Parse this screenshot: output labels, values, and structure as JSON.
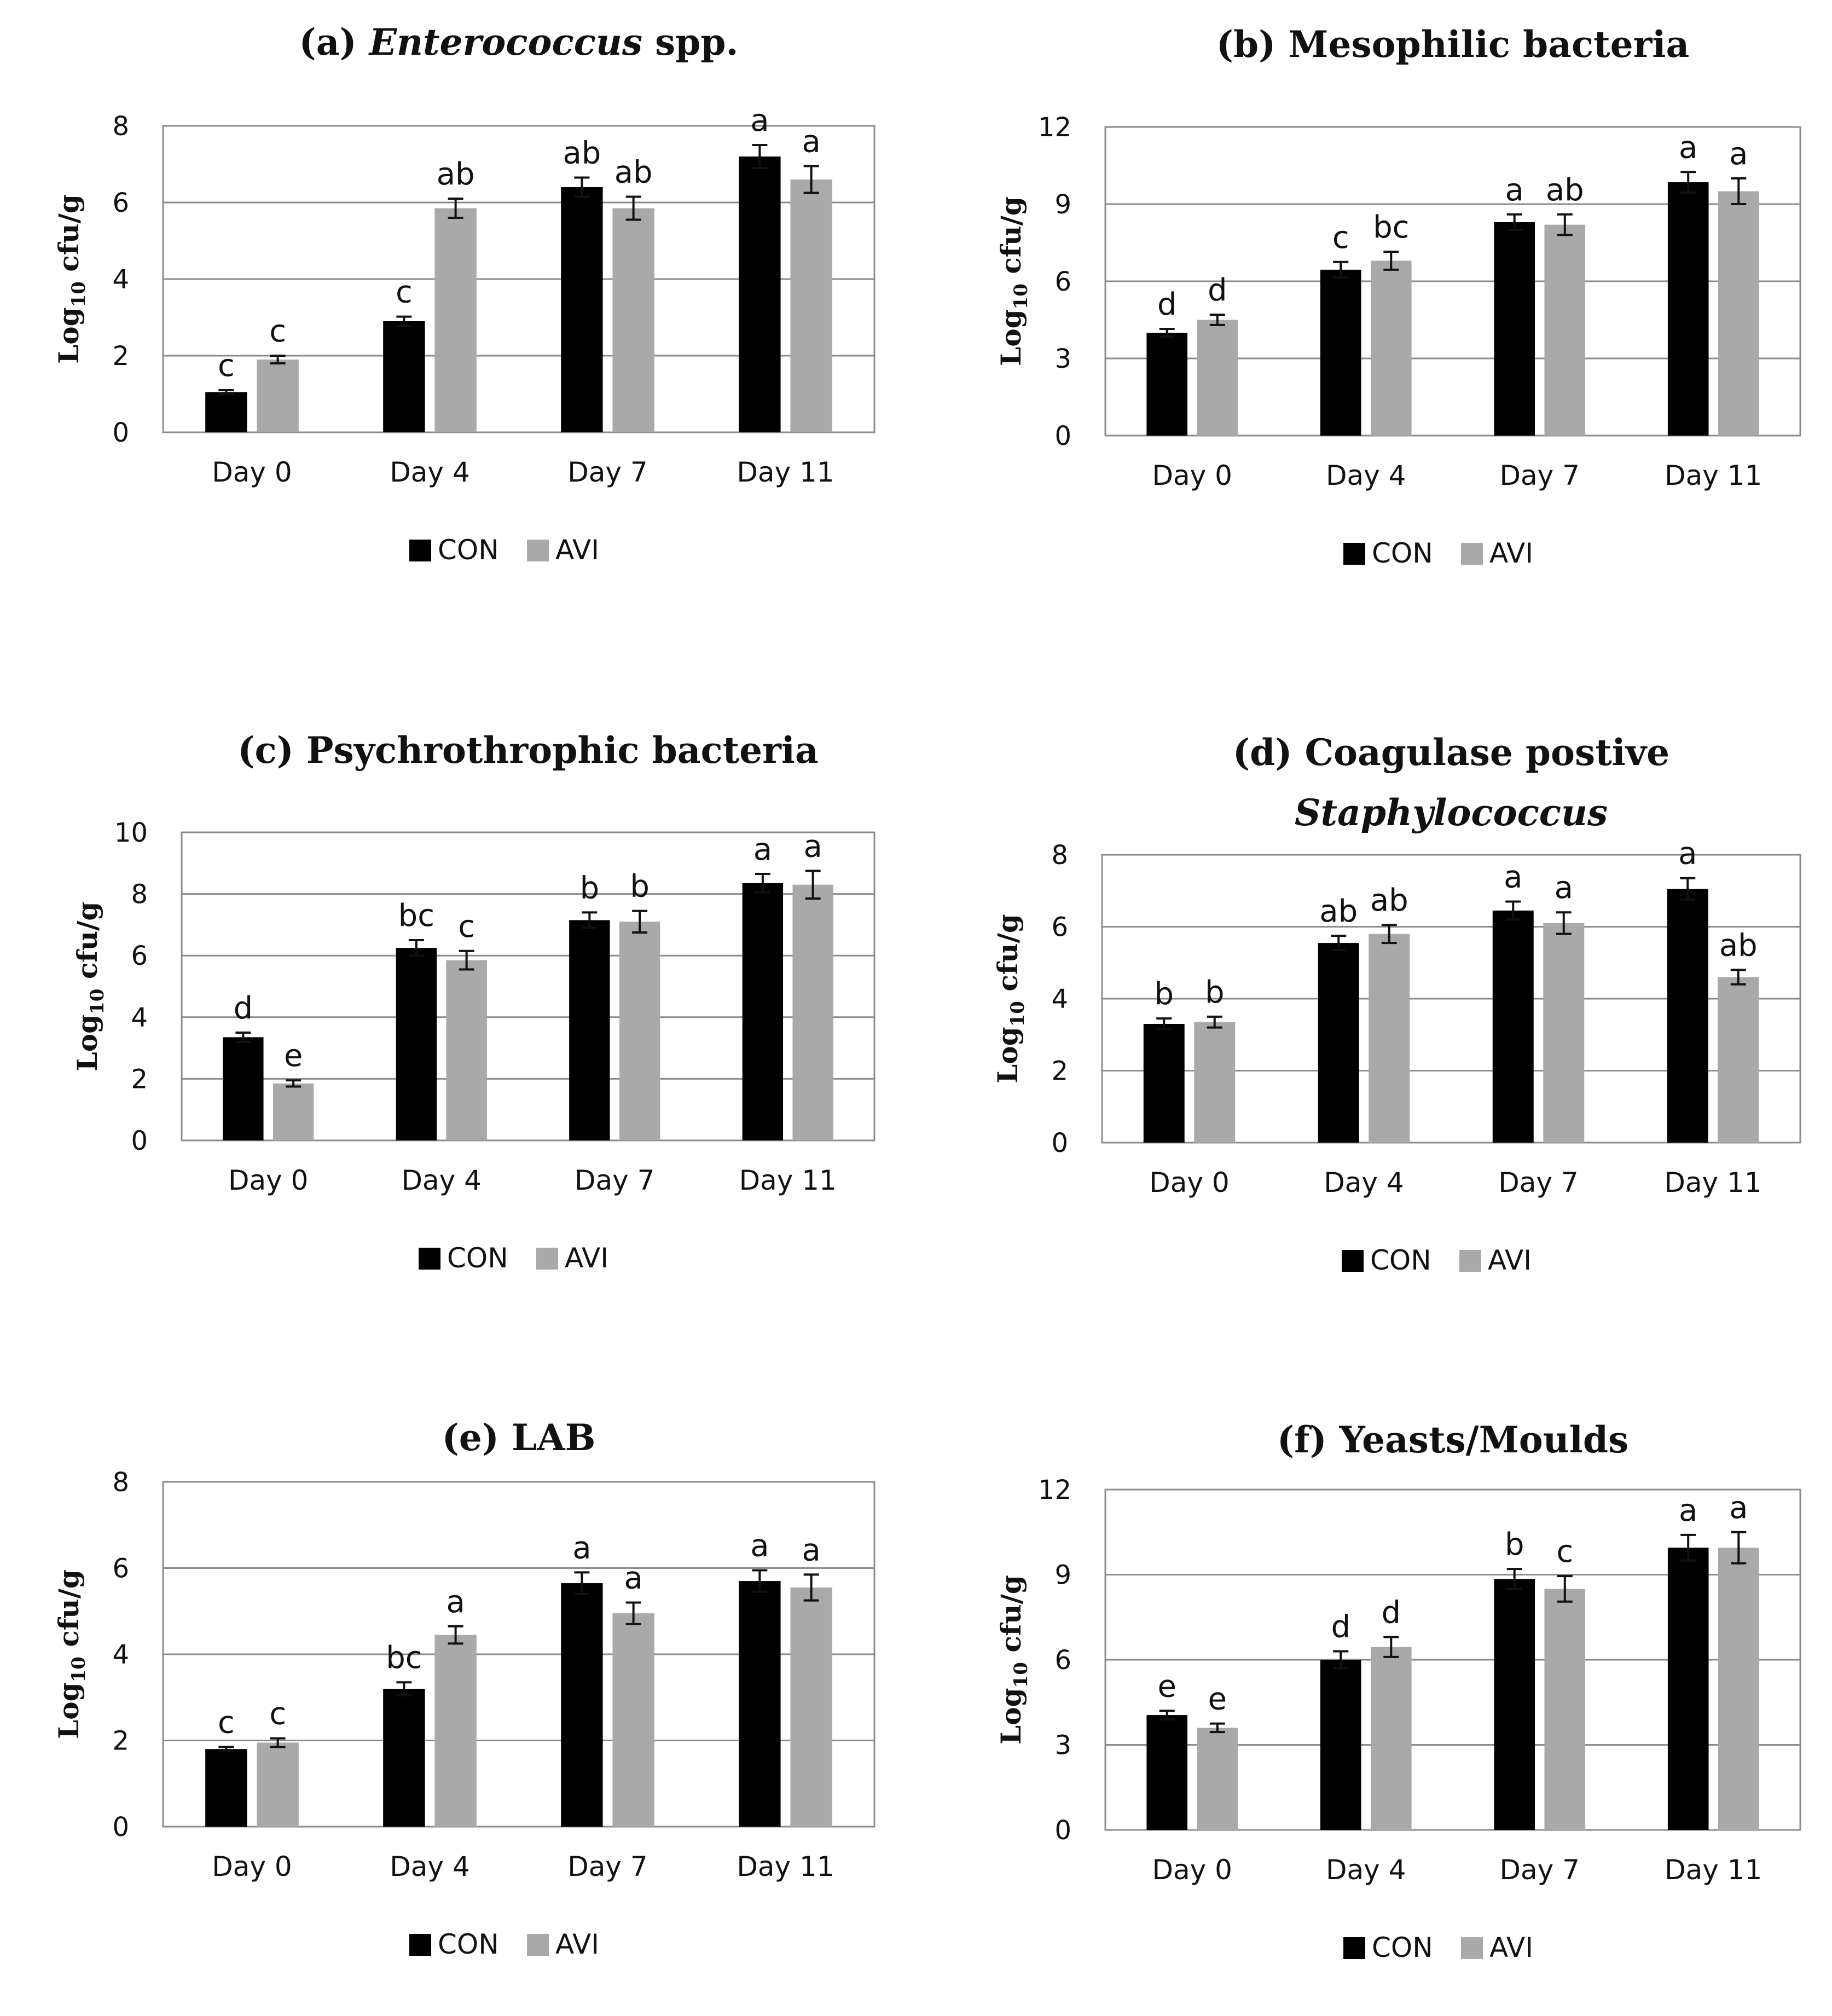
{
  "colors": {
    "CON": "#000000",
    "AVI": "#a9a9a9"
  },
  "chart_data": [
    {
      "type": "bar",
      "title": "(a) Enterococcus spp.",
      "title_parts": [
        {
          "text": "(a) ",
          "italic": false
        },
        {
          "text": "Enterococcus",
          "italic": true
        },
        {
          "text": " spp.",
          "italic": false
        }
      ],
      "ylabel": "Log10 cfu/g",
      "ylabel_parts": {
        "pre": "Log",
        "sub": "10",
        "post": " cfu/g"
      },
      "ylim": [
        0,
        8
      ],
      "yticks": [
        0,
        2,
        4,
        6,
        8
      ],
      "categories": [
        "Day 0",
        "Day 4",
        "Day 7",
        "Day 11"
      ],
      "series": [
        {
          "name": "CON",
          "values": [
            1.05,
            2.9,
            6.4,
            7.2
          ],
          "errors": [
            0.05,
            0.12,
            0.25,
            0.3
          ],
          "labels": [
            "c",
            "c",
            "ab",
            "a"
          ]
        },
        {
          "name": "AVI",
          "values": [
            1.9,
            5.85,
            5.85,
            6.6
          ],
          "errors": [
            0.1,
            0.25,
            0.3,
            0.35
          ],
          "labels": [
            "c",
            "ab",
            "ab",
            "a"
          ]
        }
      ],
      "legend": [
        "CON",
        "AVI"
      ],
      "grid": true
    },
    {
      "type": "bar",
      "title": "(b) Mesophilic bacteria",
      "title_parts": [
        {
          "text": "(b) Mesophilic bacteria",
          "italic": false
        }
      ],
      "ylabel": "Log10 cfu/g",
      "ylabel_parts": {
        "pre": "Log",
        "sub": "10",
        "post": " cfu/g"
      },
      "ylim": [
        0,
        12
      ],
      "yticks": [
        0,
        3,
        6,
        9,
        12
      ],
      "categories": [
        "Day 0",
        "Day 4",
        "Day 7",
        "Day 11"
      ],
      "series": [
        {
          "name": "CON",
          "values": [
            4.0,
            6.45,
            8.3,
            9.85
          ],
          "errors": [
            0.15,
            0.3,
            0.3,
            0.4
          ],
          "labels": [
            "d",
            "c",
            "a",
            "a"
          ]
        },
        {
          "name": "AVI",
          "values": [
            4.5,
            6.8,
            8.2,
            9.5
          ],
          "errors": [
            0.2,
            0.35,
            0.4,
            0.5
          ],
          "labels": [
            "d",
            "bc",
            "ab",
            "a"
          ]
        }
      ],
      "legend": [
        "CON",
        "AVI"
      ],
      "grid": true
    },
    {
      "type": "bar",
      "title": "(c) Psychrothrophic bacteria",
      "title_parts": [
        {
          "text": "(c) Psychrothrophic bacteria",
          "italic": false
        }
      ],
      "ylabel": "Log10 cfu/g",
      "ylabel_parts": {
        "pre": "Log",
        "sub": "10",
        "post": " cfu/g"
      },
      "ylim": [
        0,
        10
      ],
      "yticks": [
        0,
        2,
        4,
        6,
        8,
        10
      ],
      "categories": [
        "Day 0",
        "Day 4",
        "Day 7",
        "Day 11"
      ],
      "series": [
        {
          "name": "CON",
          "values": [
            3.35,
            6.25,
            7.15,
            8.35
          ],
          "errors": [
            0.15,
            0.25,
            0.25,
            0.3
          ],
          "labels": [
            "d",
            "bc",
            "b",
            "a"
          ]
        },
        {
          "name": "AVI",
          "values": [
            1.85,
            5.85,
            7.1,
            8.3
          ],
          "errors": [
            0.1,
            0.3,
            0.35,
            0.45
          ],
          "labels": [
            "e",
            "c",
            "b",
            "a"
          ]
        }
      ],
      "legend": [
        "CON",
        "AVI"
      ],
      "grid": true
    },
    {
      "type": "bar",
      "title": "(d) Coagulase postive Staphylococcus",
      "title_parts": [
        {
          "text": "(d) Coagulase postive",
          "italic": false
        }
      ],
      "title_line2": "Staphylococcus",
      "ylabel": "Log10 cfu/g",
      "ylabel_parts": {
        "pre": "Log",
        "sub": "10",
        "post": " cfu/g"
      },
      "ylim": [
        0,
        8
      ],
      "yticks": [
        0,
        2,
        4,
        6,
        8
      ],
      "categories": [
        "Day 0",
        "Day 4",
        "Day 7",
        "Day 11"
      ],
      "series": [
        {
          "name": "CON",
          "values": [
            3.3,
            5.55,
            6.45,
            7.05
          ],
          "errors": [
            0.15,
            0.2,
            0.25,
            0.3
          ],
          "labels": [
            "b",
            "ab",
            "a",
            "a"
          ]
        },
        {
          "name": "AVI",
          "values": [
            3.35,
            5.8,
            6.1,
            4.6
          ],
          "errors": [
            0.15,
            0.25,
            0.3,
            0.2
          ],
          "labels": [
            "b",
            "ab",
            "a",
            "ab"
          ]
        }
      ],
      "legend": [
        "CON",
        "AVI"
      ],
      "grid": true
    },
    {
      "type": "bar",
      "title": "(e) LAB",
      "title_parts": [
        {
          "text": "(e) LAB",
          "italic": false
        }
      ],
      "ylabel": "Log10 cfu/g",
      "ylabel_parts": {
        "pre": "Log",
        "sub": "10",
        "post": " cfu/g"
      },
      "ylim": [
        0,
        8
      ],
      "yticks": [
        0,
        2,
        4,
        6,
        8
      ],
      "categories": [
        "Day 0",
        "Day 4",
        "Day 7",
        "Day 11"
      ],
      "series": [
        {
          "name": "CON",
          "values": [
            1.8,
            3.2,
            5.65,
            5.7
          ],
          "errors": [
            0.05,
            0.15,
            0.25,
            0.25
          ],
          "labels": [
            "c",
            "bc",
            "a",
            "a"
          ]
        },
        {
          "name": "AVI",
          "values": [
            1.95,
            4.45,
            4.95,
            5.55
          ],
          "errors": [
            0.1,
            0.2,
            0.25,
            0.3
          ],
          "labels": [
            "c",
            "a",
            "a",
            "a"
          ]
        }
      ],
      "legend": [
        "CON",
        "AVI"
      ],
      "grid": true
    },
    {
      "type": "bar",
      "title": "(f) Yeasts/Moulds",
      "title_parts": [
        {
          "text": "(f) Yeasts/Moulds",
          "italic": false
        }
      ],
      "ylabel": "Log10 cfu/g",
      "ylabel_parts": {
        "pre": "Log",
        "sub": "10",
        "post": " cfu/g"
      },
      "ylim": [
        0,
        12
      ],
      "yticks": [
        0,
        3,
        6,
        9,
        12
      ],
      "categories": [
        "Day 0",
        "Day 4",
        "Day 7",
        "Day 11"
      ],
      "series": [
        {
          "name": "CON",
          "values": [
            4.05,
            6.0,
            8.85,
            9.95
          ],
          "errors": [
            0.15,
            0.3,
            0.35,
            0.45
          ],
          "labels": [
            "e",
            "d",
            "b",
            "a"
          ]
        },
        {
          "name": "AVI",
          "values": [
            3.6,
            6.45,
            8.5,
            9.95
          ],
          "errors": [
            0.15,
            0.35,
            0.45,
            0.55
          ],
          "labels": [
            "e",
            "d",
            "c",
            "a"
          ]
        }
      ],
      "legend": [
        "CON",
        "AVI"
      ],
      "grid": true
    }
  ]
}
